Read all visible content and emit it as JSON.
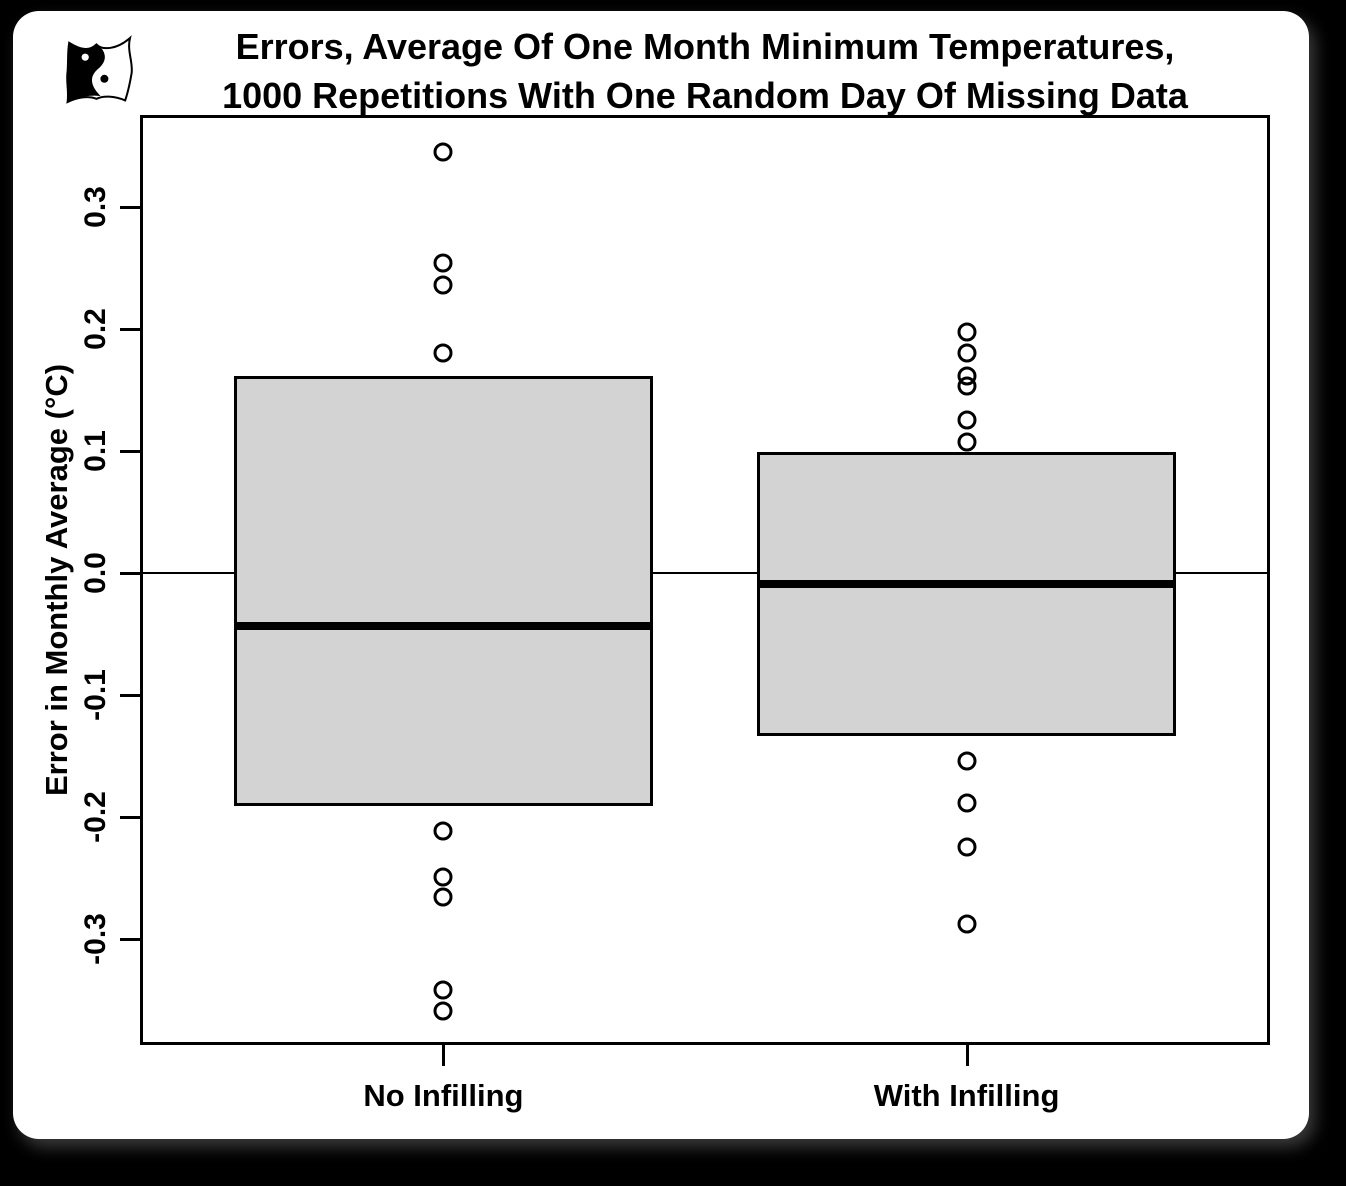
{
  "window": {
    "background_color": "#000000",
    "card_color": "#ffffff"
  },
  "logo": {
    "label": "yin-yang owl logo"
  },
  "chart_data": {
    "type": "boxplot",
    "title_lines": [
      "Errors, Average Of One Month Minimum Temperatures,",
      "1000 Repetitions With One Random Day Of Missing Data"
    ],
    "ylabel": "Error in Monthly Average (°C)",
    "ylim": [
      -0.387,
      0.375
    ],
    "yticks": [
      0.3,
      0.2,
      0.1,
      0.0,
      -0.1,
      -0.2,
      -0.3
    ],
    "ytick_labels": [
      "0.3",
      "0.2",
      "0.1",
      "0.0",
      "-0.1",
      "-0.2",
      "-0.3"
    ],
    "reference_line": 0.0,
    "grid": false,
    "categories": [
      "No Infilling",
      "With Infilling"
    ],
    "series": [
      {
        "name": "No Infilling",
        "q1": -0.191,
        "median": -0.044,
        "q3": 0.161,
        "outliers": [
          0.345,
          0.254,
          0.236,
          0.18,
          -0.212,
          -0.249,
          -0.266,
          -0.342,
          -0.359
        ]
      },
      {
        "name": "With Infilling",
        "q1": -0.134,
        "median": -0.009,
        "q3": 0.099,
        "outliers": [
          0.197,
          0.18,
          0.161,
          0.153,
          0.125,
          0.107,
          -0.154,
          -0.189,
          -0.225,
          -0.288
        ]
      }
    ],
    "box_fill": "#d3d3d3",
    "line_color": "#000000"
  }
}
